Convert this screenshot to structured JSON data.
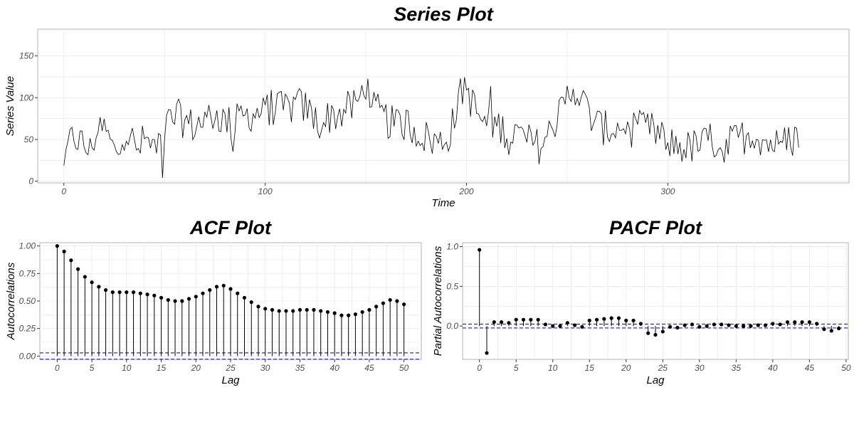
{
  "chart_data": [
    {
      "type": "line",
      "title": "Series Plot",
      "xlabel": "Time",
      "ylabel": "Series Value",
      "xlim": [
        -13,
        390
      ],
      "ylim": [
        -2,
        182
      ],
      "xticks": [
        0,
        100,
        200,
        300
      ],
      "yticks": [
        0,
        50,
        100,
        150
      ],
      "grid": true,
      "anchors": [
        [
          0,
          12
        ],
        [
          2,
          40
        ],
        [
          5,
          55
        ],
        [
          9,
          45
        ],
        [
          13,
          35
        ],
        [
          17,
          68
        ],
        [
          21,
          58
        ],
        [
          25,
          35
        ],
        [
          29,
          60
        ],
        [
          33,
          55
        ],
        [
          36,
          35
        ],
        [
          40,
          50
        ],
        [
          44,
          42
        ],
        [
          48,
          52
        ],
        [
          52,
          70
        ],
        [
          56,
          78
        ],
        [
          60,
          72
        ],
        [
          64,
          66
        ],
        [
          68,
          70
        ],
        [
          72,
          78
        ],
        [
          76,
          80
        ],
        [
          80,
          72
        ],
        [
          84,
          68
        ],
        [
          88,
          76
        ],
        [
          92,
          80
        ],
        [
          96,
          82
        ],
        [
          100,
          86
        ],
        [
          104,
          88
        ],
        [
          108,
          86
        ],
        [
          112,
          88
        ],
        [
          116,
          92
        ],
        [
          120,
          88
        ],
        [
          124,
          76
        ],
        [
          128,
          68
        ],
        [
          132,
          78
        ],
        [
          136,
          80
        ],
        [
          140,
          85
        ],
        [
          144,
          90
        ],
        [
          147,
          100
        ],
        [
          150,
          118
        ],
        [
          152,
          96
        ],
        [
          155,
          86
        ],
        [
          158,
          78
        ],
        [
          162,
          70
        ],
        [
          166,
          66
        ],
        [
          170,
          70
        ],
        [
          174,
          62
        ],
        [
          178,
          55
        ],
        [
          182,
          50
        ],
        [
          186,
          46
        ],
        [
          190,
          50
        ],
        [
          193,
          68
        ],
        [
          196,
          95
        ],
        [
          199,
          118
        ],
        [
          202,
          98
        ],
        [
          205,
          82
        ],
        [
          208,
          72
        ],
        [
          212,
          70
        ],
        [
          216,
          66
        ],
        [
          220,
          60
        ],
        [
          224,
          58
        ],
        [
          228,
          52
        ],
        [
          232,
          46
        ],
        [
          236,
          42
        ],
        [
          240,
          52
        ],
        [
          244,
          72
        ],
        [
          248,
          88
        ],
        [
          251,
          108
        ],
        [
          254,
          112
        ],
        [
          257,
          98
        ],
        [
          260,
          85
        ],
        [
          263,
          72
        ],
        [
          266,
          66
        ],
        [
          270,
          62
        ],
        [
          274,
          64
        ],
        [
          278,
          65
        ],
        [
          282,
          62
        ],
        [
          286,
          60
        ],
        [
          290,
          64
        ],
        [
          294,
          58
        ],
        [
          298,
          52
        ],
        [
          302,
          44
        ],
        [
          306,
          42
        ],
        [
          310,
          40
        ],
        [
          314,
          42
        ],
        [
          318,
          45
        ],
        [
          322,
          48
        ],
        [
          326,
          46
        ],
        [
          330,
          44
        ],
        [
          334,
          50
        ],
        [
          338,
          54
        ],
        [
          342,
          58
        ],
        [
          346,
          52
        ],
        [
          350,
          46
        ],
        [
          354,
          44
        ],
        [
          358,
          46
        ],
        [
          362,
          50
        ],
        [
          366,
          60
        ]
      ],
      "noise_amplitude": 22,
      "n_points": 366,
      "color": "#000000"
    },
    {
      "type": "lollipop",
      "title": "ACF Plot",
      "xlabel": "Lag",
      "ylabel": "Autocorrelations",
      "xlim": [
        -2.5,
        52.5
      ],
      "ylim": [
        -0.03,
        1.03
      ],
      "xticks": [
        0,
        5,
        10,
        15,
        20,
        25,
        30,
        35,
        40,
        45,
        50
      ],
      "yticks": [
        0.0,
        0.25,
        0.5,
        0.75,
        1.0
      ],
      "ytick_labels": [
        "0.00",
        "0.25",
        "0.50",
        "0.75",
        "1.00"
      ],
      "grid": true,
      "x": [
        0,
        1,
        2,
        3,
        4,
        5,
        6,
        7,
        8,
        9,
        10,
        11,
        12,
        13,
        14,
        15,
        16,
        17,
        18,
        19,
        20,
        21,
        22,
        23,
        24,
        25,
        26,
        27,
        28,
        29,
        30,
        31,
        32,
        33,
        34,
        35,
        36,
        37,
        38,
        39,
        40,
        41,
        42,
        43,
        44,
        45,
        46,
        47,
        48,
        49,
        50
      ],
      "values": [
        1.0,
        0.95,
        0.87,
        0.79,
        0.72,
        0.67,
        0.63,
        0.6,
        0.58,
        0.58,
        0.58,
        0.58,
        0.57,
        0.56,
        0.55,
        0.53,
        0.51,
        0.5,
        0.5,
        0.52,
        0.54,
        0.57,
        0.6,
        0.63,
        0.64,
        0.61,
        0.57,
        0.53,
        0.49,
        0.45,
        0.43,
        0.42,
        0.41,
        0.41,
        0.41,
        0.42,
        0.42,
        0.42,
        0.41,
        0.4,
        0.39,
        0.37,
        0.37,
        0.38,
        0.4,
        0.42,
        0.45,
        0.48,
        0.51,
        0.5,
        0.47
      ],
      "confidence_bounds": [
        0.0287,
        -0.0287
      ],
      "bound_color": "#00008b"
    },
    {
      "type": "lollipop",
      "title": "PACF Plot",
      "xlabel": "Lag",
      "ylabel": "Partial Autocorrelations",
      "xlim": [
        -2.3,
        50.3
      ],
      "ylim": [
        -0.42,
        1.05
      ],
      "xticks": [
        0,
        5,
        10,
        15,
        20,
        25,
        30,
        35,
        40,
        45,
        50
      ],
      "yticks": [
        0.0,
        0.5,
        1.0
      ],
      "ytick_labels": [
        "0.0",
        "0.5",
        "1.0"
      ],
      "grid": true,
      "x": [
        0,
        1,
        2,
        3,
        4,
        5,
        6,
        7,
        8,
        9,
        10,
        11,
        12,
        13,
        14,
        15,
        16,
        17,
        18,
        19,
        20,
        21,
        22,
        23,
        24,
        25,
        26,
        27,
        28,
        29,
        30,
        31,
        32,
        33,
        34,
        35,
        36,
        37,
        38,
        39,
        40,
        41,
        42,
        43,
        44,
        45,
        46,
        47,
        48,
        49
      ],
      "values": [
        0.96,
        -0.34,
        0.05,
        0.05,
        0.04,
        0.08,
        0.08,
        0.08,
        0.08,
        0.02,
        0.0,
        0.0,
        0.04,
        0.01,
        -0.01,
        0.07,
        0.08,
        0.09,
        0.1,
        0.1,
        0.07,
        0.07,
        0.03,
        -0.09,
        -0.11,
        -0.07,
        -0.01,
        -0.02,
        0.01,
        0.02,
        -0.01,
        0.0,
        0.02,
        0.02,
        0.01,
        0.0,
        0.0,
        0.0,
        0.01,
        0.01,
        0.03,
        0.02,
        0.05,
        0.05,
        0.05,
        0.05,
        0.03,
        -0.04,
        -0.06,
        -0.03
      ],
      "confidence_bounds": [
        0.025,
        -0.025
      ],
      "bound_color": "#00008b"
    }
  ]
}
